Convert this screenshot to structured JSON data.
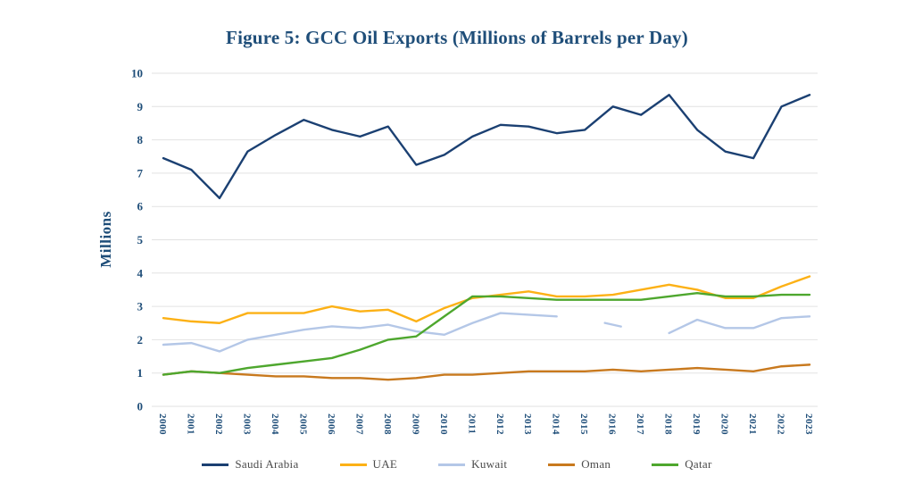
{
  "chart_data": {
    "type": "line",
    "title": "Figure 5: GCC Oil Exports (Millions of Barrels per Day)",
    "xlabel": "",
    "ylabel": "Millions",
    "ylim": [
      0,
      10
    ],
    "ytick_step": 1,
    "grid": "horizontal",
    "legend_position": "bottom",
    "x_tick_rotation": 90,
    "x": [
      "2000",
      "2001",
      "2002",
      "2003",
      "2004",
      "2005",
      "2006",
      "2007",
      "2008",
      "2009",
      "2010",
      "2011",
      "2012",
      "2013",
      "2014",
      "2015",
      "2016",
      "2017",
      "2018",
      "2019",
      "2020",
      "2021",
      "2022",
      "2023"
    ],
    "series": [
      {
        "name": "Saudi Arabia",
        "color": "#1B4072",
        "values": [
          7.45,
          7.1,
          6.25,
          7.65,
          8.15,
          8.6,
          8.3,
          8.1,
          8.4,
          7.25,
          7.55,
          8.1,
          8.45,
          8.4,
          8.2,
          8.3,
          9.0,
          8.75,
          9.35,
          8.3,
          7.65,
          7.45,
          9.0,
          9.35
        ]
      },
      {
        "name": "UAE",
        "color": "#FCB116",
        "values": [
          2.65,
          2.55,
          2.5,
          2.8,
          2.8,
          2.8,
          3.0,
          2.85,
          2.9,
          2.55,
          2.95,
          3.25,
          3.35,
          3.45,
          3.3,
          3.3,
          3.35,
          3.5,
          3.65,
          3.5,
          3.25,
          3.25,
          3.6,
          3.9
        ]
      },
      {
        "name": "Kuwait",
        "color": "#B4C7E7",
        "values": [
          1.85,
          1.9,
          1.65,
          2.0,
          2.15,
          2.3,
          2.4,
          2.35,
          2.45,
          2.25,
          2.15,
          2.5,
          2.8,
          2.75,
          2.7,
          null,
          2.45,
          null,
          2.2,
          2.6,
          2.35,
          2.35,
          2.65,
          2.7
        ],
        "note": "data gaps at 2015 and 2017; isolated 2016 point rendered as a short dash"
      },
      {
        "name": "Oman",
        "color": "#C8791E",
        "values": [
          0.95,
          1.05,
          1.0,
          0.95,
          0.9,
          0.9,
          0.85,
          0.85,
          0.8,
          0.85,
          0.95,
          0.95,
          1.0,
          1.05,
          1.05,
          1.05,
          1.1,
          1.05,
          1.1,
          1.15,
          1.1,
          1.05,
          1.2,
          1.25
        ]
      },
      {
        "name": "Qatar",
        "color": "#4EA72E",
        "values": [
          0.95,
          1.05,
          1.0,
          1.15,
          1.25,
          1.35,
          1.45,
          1.7,
          2.0,
          2.1,
          2.7,
          3.3,
          3.3,
          3.25,
          3.2,
          3.2,
          3.2,
          3.2,
          3.3,
          3.4,
          3.3,
          3.3,
          3.35,
          3.35
        ]
      }
    ]
  },
  "style": {
    "title_color": "#1F4E79",
    "tick_color": "#1F4E79",
    "gridline_color": "#E2E2E2",
    "legend_text_color": "#4a4a4a"
  }
}
